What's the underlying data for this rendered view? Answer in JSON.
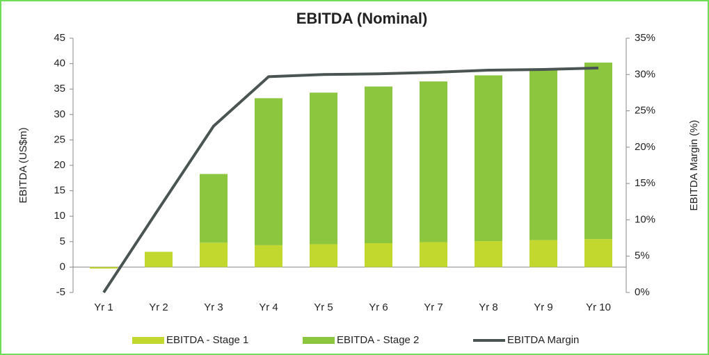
{
  "chart_data": {
    "type": "bar",
    "title": "EBITDA (Nominal)",
    "y_label": "EBITDA (US$m)",
    "y2_label": "EBITDA Margin (%)",
    "categories": [
      "Yr 1",
      "Yr 2",
      "Yr 3",
      "Yr 4",
      "Yr 5",
      "Yr 6",
      "Yr 7",
      "Yr 8",
      "Yr 9",
      "Yr 10"
    ],
    "series": [
      {
        "name": "EBITDA - Stage 1",
        "color": "#c3d82f",
        "values": [
          -0.3,
          3.0,
          4.8,
          4.3,
          4.5,
          4.7,
          4.9,
          5.1,
          5.3,
          5.5
        ]
      },
      {
        "name": "EBITDA - Stage 2",
        "color": "#8cc63f",
        "values": [
          0,
          0,
          13.5,
          28.9,
          29.8,
          30.8,
          31.6,
          32.6,
          33.4,
          34.7
        ]
      },
      {
        "name": "EBITDA Margin",
        "color": "#4a5553",
        "type": "line",
        "axis": "y2",
        "values": [
          0,
          11.5,
          22.9,
          29.7,
          30.0,
          30.1,
          30.3,
          30.6,
          30.7,
          30.9
        ]
      }
    ],
    "ylim": [
      -5,
      45
    ],
    "yticks": [
      -5,
      0,
      5,
      10,
      15,
      20,
      25,
      30,
      35,
      40,
      45
    ],
    "y2lim": [
      0,
      35
    ],
    "y2ticks": [
      {
        "value": 0,
        "label": "0%"
      },
      {
        "value": 5,
        "label": "5%"
      },
      {
        "value": 10,
        "label": "10%"
      },
      {
        "value": 15,
        "label": "15%"
      },
      {
        "value": 20,
        "label": "20%"
      },
      {
        "value": 25,
        "label": "25%"
      },
      {
        "value": 30,
        "label": "30%"
      },
      {
        "value": 35,
        "label": "35%"
      }
    ],
    "legend": "bottom"
  }
}
